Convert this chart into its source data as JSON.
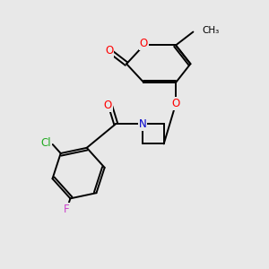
{
  "background_color": "#e8e8e8",
  "bond_color": "#000000",
  "atom_colors": {
    "O": "#ff0000",
    "N": "#0000cc",
    "Cl": "#22aa22",
    "F": "#cc44cc",
    "C": "#000000"
  },
  "font_size": 8.5,
  "bg": "#e8e8e8",
  "lw": 1.4
}
